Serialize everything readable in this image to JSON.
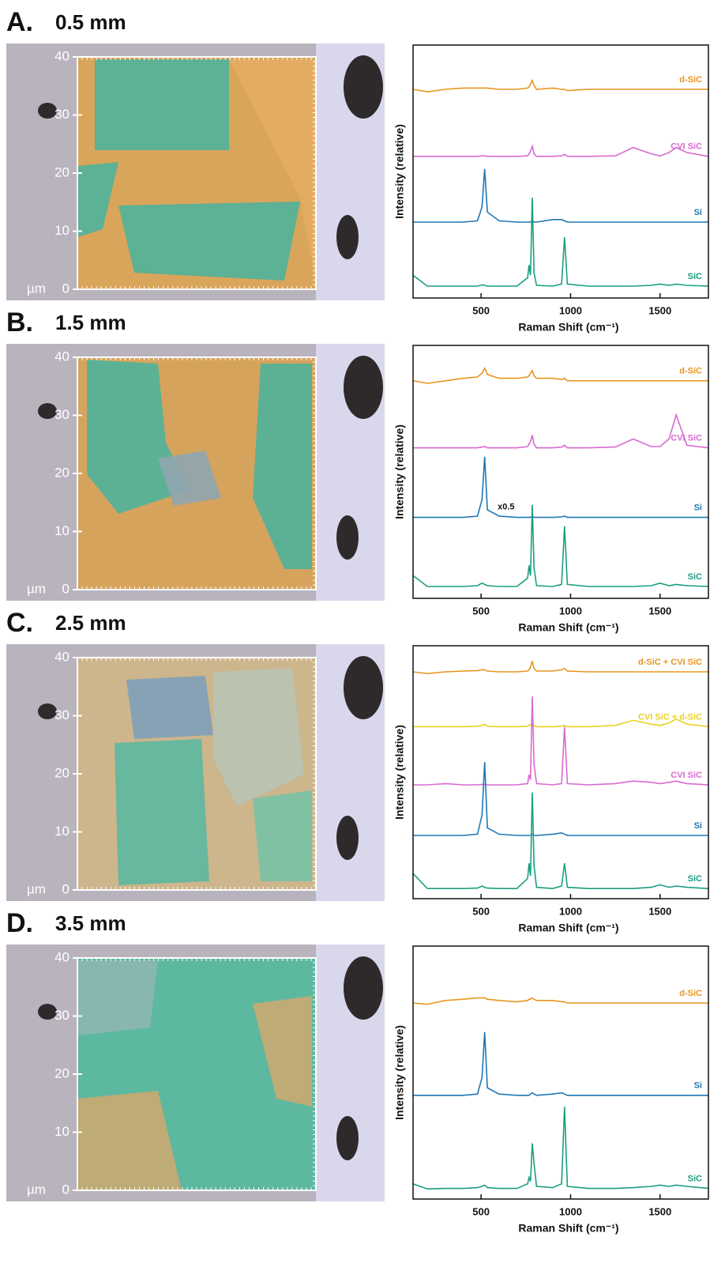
{
  "panels": [
    {
      "label": "A.",
      "title": "0.5 mm",
      "image_scale": {
        "unit": "µm",
        "ylim": [
          0,
          40
        ],
        "yticks": [
          0,
          10,
          20,
          30,
          40
        ]
      }
    },
    {
      "label": "B.",
      "title": "1.5 mm",
      "image_scale": {
        "unit": "µm",
        "ylim": [
          0,
          40
        ],
        "yticks": [
          0,
          10,
          20,
          30,
          40
        ]
      }
    },
    {
      "label": "C.",
      "title": "2.5 mm",
      "image_scale": {
        "unit": "µm",
        "ylim": [
          0,
          40
        ],
        "yticks": [
          0,
          10,
          20,
          30,
          40
        ]
      }
    },
    {
      "label": "D.",
      "title": "3.5 mm",
      "image_scale": {
        "unit": "µm",
        "ylim": [
          0,
          40
        ],
        "yticks": [
          0,
          10,
          20,
          30,
          40
        ]
      }
    }
  ],
  "chart_data": [
    {
      "type": "line",
      "xlabel": "Raman Shift (cm⁻¹)",
      "ylabel": "Intensity (relative)",
      "xlim": [
        120,
        1770
      ],
      "xticks": [
        500,
        1000,
        1500
      ],
      "ylim": [
        0,
        10
      ],
      "x": [
        120,
        200,
        300,
        400,
        480,
        505,
        520,
        535,
        600,
        700,
        760,
        768,
        776,
        786,
        796,
        810,
        900,
        950,
        966,
        982,
        1100,
        1250,
        1350,
        1450,
        1500,
        1550,
        1590,
        1650,
        1770
      ],
      "series": [
        {
          "name": "d-SiC",
          "color": "#e8951f",
          "values": [
            8.25,
            8.15,
            8.25,
            8.3,
            8.3,
            8.3,
            8.3,
            8.3,
            8.25,
            8.25,
            8.3,
            8.35,
            8.45,
            8.6,
            8.4,
            8.25,
            8.3,
            8.25,
            8.25,
            8.2,
            8.25,
            8.25,
            8.25,
            8.25,
            8.25,
            8.25,
            8.25,
            8.25,
            8.25
          ]
        },
        {
          "name": "CVI SiC",
          "color": "#d86ad0",
          "values": [
            5.6,
            5.6,
            5.6,
            5.6,
            5.6,
            5.62,
            5.62,
            5.6,
            5.6,
            5.6,
            5.62,
            5.7,
            5.8,
            6.0,
            5.7,
            5.6,
            5.6,
            5.62,
            5.68,
            5.6,
            5.6,
            5.62,
            5.95,
            5.7,
            5.62,
            5.75,
            5.95,
            5.75,
            5.6
          ]
        },
        {
          "name": "Si",
          "color": "#1f78b4",
          "values": [
            3.0,
            3.0,
            3.0,
            3.0,
            3.05,
            3.6,
            5.1,
            3.4,
            3.05,
            3.0,
            3.0,
            3.0,
            3.0,
            3.05,
            3.0,
            3.0,
            3.1,
            3.1,
            3.05,
            3.0,
            3.0,
            3.0,
            3.0,
            3.0,
            3.0,
            3.0,
            3.0,
            3.0,
            3.0
          ]
        },
        {
          "name": "SiC",
          "color": "#1a9e80",
          "values": [
            0.9,
            0.47,
            0.47,
            0.47,
            0.47,
            0.52,
            0.5,
            0.47,
            0.47,
            0.47,
            0.8,
            1.3,
            0.9,
            3.97,
            1.0,
            0.5,
            0.47,
            0.55,
            2.4,
            0.55,
            0.47,
            0.47,
            0.47,
            0.5,
            0.55,
            0.5,
            0.55,
            0.5,
            0.47
          ]
        }
      ]
    },
    {
      "type": "line",
      "xlabel": "Raman Shift (cm⁻¹)",
      "ylabel": "Intensity (relative)",
      "xlim": [
        120,
        1770
      ],
      "xticks": [
        500,
        1000,
        1500
      ],
      "ylim": [
        0,
        10
      ],
      "x": [
        120,
        200,
        300,
        400,
        480,
        505,
        520,
        535,
        600,
        700,
        760,
        768,
        776,
        786,
        796,
        810,
        900,
        950,
        966,
        982,
        1100,
        1250,
        1350,
        1450,
        1500,
        1550,
        1590,
        1650,
        1770
      ],
      "series": [
        {
          "name": "d-SiC",
          "color": "#e8951f",
          "values": [
            8.6,
            8.5,
            8.6,
            8.7,
            8.75,
            8.9,
            9.1,
            8.85,
            8.7,
            8.7,
            8.75,
            8.8,
            8.9,
            9.0,
            8.8,
            8.7,
            8.7,
            8.65,
            8.7,
            8.6,
            8.6,
            8.6,
            8.6,
            8.6,
            8.6,
            8.6,
            8.6,
            8.6,
            8.6
          ]
        },
        {
          "name": "CVI SiC",
          "color": "#d86ad0",
          "values": [
            5.95,
            5.95,
            5.95,
            5.95,
            5.95,
            5.98,
            6.0,
            5.95,
            5.95,
            5.95,
            6.0,
            6.1,
            6.2,
            6.45,
            6.1,
            5.95,
            5.95,
            5.98,
            6.05,
            5.95,
            5.95,
            5.98,
            6.3,
            6.0,
            6.0,
            6.3,
            7.25,
            6.05,
            5.95
          ]
        },
        {
          "name": "Si",
          "color": "#1f78b4",
          "values": [
            3.2,
            3.2,
            3.2,
            3.2,
            3.25,
            3.9,
            5.6,
            3.5,
            3.25,
            3.2,
            3.2,
            3.2,
            3.2,
            3.25,
            3.2,
            3.2,
            3.2,
            3.22,
            3.25,
            3.2,
            3.2,
            3.2,
            3.2,
            3.2,
            3.2,
            3.2,
            3.2,
            3.2,
            3.2
          ]
        },
        {
          "name": "SiC",
          "color": "#1a9e80",
          "values": [
            0.9,
            0.47,
            0.47,
            0.47,
            0.5,
            0.6,
            0.55,
            0.5,
            0.47,
            0.47,
            0.8,
            1.3,
            0.9,
            3.7,
            1.2,
            0.5,
            0.47,
            0.55,
            2.85,
            0.55,
            0.47,
            0.47,
            0.47,
            0.5,
            0.6,
            0.5,
            0.55,
            0.5,
            0.47
          ]
        }
      ],
      "annotations": [
        {
          "text": "x0.5",
          "x": 640,
          "y": 3.6
        }
      ]
    },
    {
      "type": "line",
      "xlabel": "Raman Shift (cm⁻¹)",
      "ylabel": "Intensity (relative)",
      "xlim": [
        120,
        1770
      ],
      "xticks": [
        500,
        1000,
        1500
      ],
      "ylim": [
        0,
        10
      ],
      "x": [
        120,
        200,
        300,
        400,
        480,
        505,
        520,
        535,
        600,
        700,
        760,
        768,
        776,
        786,
        796,
        810,
        900,
        950,
        966,
        982,
        1100,
        1250,
        1350,
        1450,
        1500,
        1550,
        1590,
        1650,
        1770
      ],
      "series": [
        {
          "name": "d-SiC + CVI SiC",
          "color": "#e8951f",
          "values": [
            8.97,
            8.9,
            8.97,
            9.0,
            9.02,
            9.05,
            9.05,
            9.0,
            8.97,
            8.97,
            9.0,
            9.05,
            9.15,
            9.4,
            9.1,
            9.0,
            9.0,
            9.05,
            9.1,
            9.0,
            8.97,
            8.97,
            8.97,
            8.97,
            8.97,
            8.97,
            8.97,
            8.97,
            8.97
          ]
        },
        {
          "name": "CVI SiC + d-SiC",
          "color": "#e8d21e",
          "values": [
            6.8,
            6.8,
            6.8,
            6.8,
            6.82,
            6.85,
            6.9,
            6.82,
            6.8,
            6.8,
            6.82,
            6.85,
            6.88,
            6.9,
            6.85,
            6.8,
            6.8,
            6.82,
            6.85,
            6.8,
            6.8,
            6.85,
            7.05,
            6.9,
            6.85,
            6.95,
            7.1,
            6.9,
            6.8
          ]
        },
        {
          "name": "CVI SiC",
          "color": "#d86ad0",
          "values": [
            4.5,
            4.5,
            4.55,
            4.5,
            4.5,
            4.52,
            4.52,
            4.5,
            4.5,
            4.5,
            4.55,
            4.9,
            4.7,
            8.0,
            5.3,
            4.55,
            4.5,
            4.55,
            6.8,
            4.55,
            4.5,
            4.55,
            4.65,
            4.6,
            4.55,
            4.6,
            4.65,
            4.55,
            4.5
          ]
        },
        {
          "name": "Si",
          "color": "#1f78b4",
          "values": [
            2.5,
            2.5,
            2.5,
            2.5,
            2.55,
            3.3,
            5.4,
            2.8,
            2.55,
            2.5,
            2.5,
            2.5,
            2.5,
            2.55,
            2.5,
            2.5,
            2.55,
            2.6,
            2.55,
            2.5,
            2.5,
            2.5,
            2.5,
            2.5,
            2.5,
            2.5,
            2.5,
            2.5,
            2.5
          ]
        },
        {
          "name": "SiC",
          "color": "#1a9e80",
          "values": [
            1.0,
            0.4,
            0.4,
            0.4,
            0.42,
            0.5,
            0.45,
            0.42,
            0.4,
            0.4,
            0.8,
            1.4,
            0.9,
            4.2,
            1.3,
            0.45,
            0.4,
            0.5,
            1.4,
            0.45,
            0.4,
            0.4,
            0.4,
            0.45,
            0.55,
            0.45,
            0.5,
            0.45,
            0.4
          ]
        }
      ]
    },
    {
      "type": "line",
      "xlabel": "Raman Shift (cm⁻¹)",
      "ylabel": "Intensity (relative)",
      "xlim": [
        120,
        1770
      ],
      "xticks": [
        500,
        1000,
        1500
      ],
      "ylim": [
        0,
        10
      ],
      "x": [
        120,
        200,
        300,
        400,
        480,
        505,
        520,
        535,
        600,
        700,
        760,
        768,
        776,
        786,
        796,
        810,
        900,
        950,
        966,
        982,
        1100,
        1250,
        1350,
        1450,
        1500,
        1550,
        1590,
        1650,
        1770
      ],
      "series": [
        {
          "name": "d-SiC",
          "color": "#e8951f",
          "values": [
            7.75,
            7.7,
            7.85,
            7.9,
            7.95,
            7.95,
            7.95,
            7.9,
            7.85,
            7.8,
            7.85,
            7.9,
            7.9,
            7.95,
            7.9,
            7.85,
            7.85,
            7.8,
            7.8,
            7.75,
            7.75,
            7.75,
            7.75,
            7.75,
            7.75,
            7.75,
            7.75,
            7.75,
            7.75
          ]
        },
        {
          "name": "Si",
          "color": "#1f78b4",
          "values": [
            4.1,
            4.1,
            4.1,
            4.1,
            4.15,
            4.8,
            6.6,
            4.4,
            4.15,
            4.1,
            4.1,
            4.1,
            4.15,
            4.2,
            4.15,
            4.1,
            4.15,
            4.2,
            4.15,
            4.1,
            4.1,
            4.1,
            4.1,
            4.1,
            4.1,
            4.1,
            4.1,
            4.1,
            4.1
          ]
        },
        {
          "name": "SiC",
          "color": "#1a9e80",
          "values": [
            0.6,
            0.4,
            0.42,
            0.42,
            0.45,
            0.5,
            0.55,
            0.45,
            0.42,
            0.42,
            0.6,
            0.85,
            0.7,
            2.2,
            1.4,
            0.5,
            0.45,
            0.6,
            3.65,
            0.5,
            0.42,
            0.42,
            0.45,
            0.5,
            0.55,
            0.5,
            0.55,
            0.5,
            0.42
          ]
        }
      ]
    }
  ]
}
